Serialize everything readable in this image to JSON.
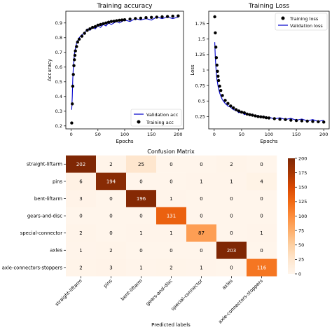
{
  "chart_data": [
    {
      "type": "line",
      "title": "Training accuracy",
      "xlabel": "Epochs",
      "ylabel": "Accuracy",
      "xlim": [
        -10,
        210
      ],
      "ylim": [
        0.18,
        0.98
      ],
      "xticks": [
        0,
        50,
        100,
        150,
        200
      ],
      "yticks": [
        0.2,
        0.3,
        0.4,
        0.5,
        0.6,
        0.7,
        0.8,
        0.9
      ],
      "legend_position": "lower-right",
      "series": [
        {
          "name": "Validation acc",
          "style": "line",
          "color": "#0000cc",
          "x": [
            1,
            2,
            3,
            4,
            5,
            6,
            7,
            8,
            10,
            12,
            15,
            20,
            25,
            30,
            35,
            40,
            45,
            50,
            55,
            60,
            65,
            70,
            75,
            80,
            85,
            90,
            95,
            100,
            110,
            120,
            130,
            140,
            150,
            160,
            170,
            180,
            190,
            200
          ],
          "y": [
            0.31,
            0.4,
            0.52,
            0.6,
            0.65,
            0.69,
            0.71,
            0.73,
            0.76,
            0.78,
            0.8,
            0.82,
            0.83,
            0.86,
            0.85,
            0.87,
            0.86,
            0.88,
            0.87,
            0.89,
            0.88,
            0.9,
            0.89,
            0.9,
            0.91,
            0.9,
            0.91,
            0.92,
            0.91,
            0.93,
            0.92,
            0.93,
            0.92,
            0.94,
            0.93,
            0.94,
            0.93,
            0.94
          ]
        },
        {
          "name": "Training acc",
          "style": "markers",
          "color": "#000000",
          "x": [
            1,
            2,
            3,
            4,
            5,
            6,
            7,
            8,
            10,
            12,
            15,
            20,
            25,
            30,
            35,
            40,
            45,
            50,
            55,
            60,
            65,
            70,
            75,
            80,
            85,
            90,
            95,
            100,
            110,
            120,
            130,
            140,
            150,
            160,
            170,
            180,
            190,
            200
          ],
          "y": [
            0.22,
            0.35,
            0.47,
            0.55,
            0.61,
            0.65,
            0.68,
            0.71,
            0.74,
            0.77,
            0.79,
            0.81,
            0.83,
            0.85,
            0.86,
            0.87,
            0.875,
            0.885,
            0.89,
            0.895,
            0.9,
            0.905,
            0.91,
            0.912,
            0.915,
            0.918,
            0.92,
            0.922,
            0.926,
            0.93,
            0.933,
            0.936,
            0.938,
            0.94,
            0.942,
            0.944,
            0.946,
            0.948
          ]
        }
      ]
    },
    {
      "type": "line",
      "title": "Training Loss",
      "xlabel": "Epochs",
      "ylabel": "Loss",
      "xlim": [
        -10,
        210
      ],
      "ylim": [
        0.05,
        1.95
      ],
      "xticks": [
        0,
        50,
        100,
        150,
        200
      ],
      "yticks": [
        0.25,
        0.5,
        0.75,
        1.0,
        1.25,
        1.5,
        1.75
      ],
      "legend_position": "upper-right",
      "series": [
        {
          "name": "Training loss",
          "style": "markers",
          "color": "#000000",
          "x": [
            1,
            2,
            3,
            4,
            5,
            6,
            7,
            8,
            10,
            12,
            15,
            20,
            25,
            30,
            35,
            40,
            45,
            50,
            55,
            60,
            65,
            70,
            75,
            80,
            85,
            90,
            95,
            100,
            110,
            120,
            130,
            140,
            150,
            160,
            170,
            180,
            190,
            200
          ],
          "y": [
            1.86,
            1.6,
            1.37,
            1.2,
            1.08,
            0.98,
            0.9,
            0.83,
            0.74,
            0.67,
            0.59,
            0.51,
            0.46,
            0.42,
            0.39,
            0.36,
            0.34,
            0.32,
            0.31,
            0.29,
            0.28,
            0.27,
            0.26,
            0.25,
            0.245,
            0.24,
            0.23,
            0.225,
            0.215,
            0.205,
            0.2,
            0.19,
            0.185,
            0.18,
            0.175,
            0.17,
            0.165,
            0.16
          ]
        },
        {
          "name": "Validation loss",
          "style": "line",
          "color": "#0000cc",
          "x": [
            1,
            2,
            3,
            4,
            5,
            6,
            7,
            8,
            10,
            12,
            15,
            20,
            25,
            30,
            35,
            40,
            45,
            50,
            55,
            60,
            65,
            70,
            75,
            80,
            85,
            90,
            95,
            100,
            110,
            120,
            130,
            140,
            150,
            160,
            170,
            180,
            190,
            200
          ],
          "y": [
            1.45,
            1.2,
            1.05,
            0.95,
            0.85,
            0.8,
            0.74,
            0.7,
            0.63,
            0.58,
            0.52,
            0.46,
            0.42,
            0.4,
            0.36,
            0.35,
            0.31,
            0.33,
            0.28,
            0.3,
            0.26,
            0.29,
            0.25,
            0.27,
            0.23,
            0.26,
            0.22,
            0.24,
            0.21,
            0.23,
            0.2,
            0.22,
            0.19,
            0.21,
            0.18,
            0.2,
            0.17,
            0.19
          ]
        }
      ]
    },
    {
      "type": "heatmap",
      "title": "Confusion Matrix",
      "xlabel": "Predicted labels",
      "ylabel": "",
      "row_labels": [
        "straight-liftarm",
        "pins",
        "bent-liftarm",
        "gears-and-disc",
        "special-connector",
        "axles",
        "axle-connectors-stoppers"
      ],
      "col_labels": [
        "straight-liftarm",
        "pins",
        "bent-liftarm",
        "gears-and-disc",
        "special-connector",
        "axles",
        "axle-connectors-stoppers"
      ],
      "values": [
        [
          202,
          2,
          25,
          0,
          0,
          2,
          0
        ],
        [
          6,
          194,
          0,
          0,
          1,
          1,
          4
        ],
        [
          3,
          0,
          196,
          1,
          0,
          0,
          0
        ],
        [
          0,
          0,
          0,
          131,
          0,
          0,
          0
        ],
        [
          2,
          0,
          1,
          1,
          87,
          0,
          1
        ],
        [
          1,
          2,
          0,
          0,
          0,
          203,
          0
        ],
        [
          2,
          3,
          1,
          2,
          1,
          0,
          116
        ]
      ],
      "colorbar": {
        "min": 0,
        "max": 200,
        "ticks": [
          0,
          25,
          50,
          75,
          100,
          125,
          150,
          175,
          200
        ]
      },
      "colormap": "Oranges"
    }
  ]
}
